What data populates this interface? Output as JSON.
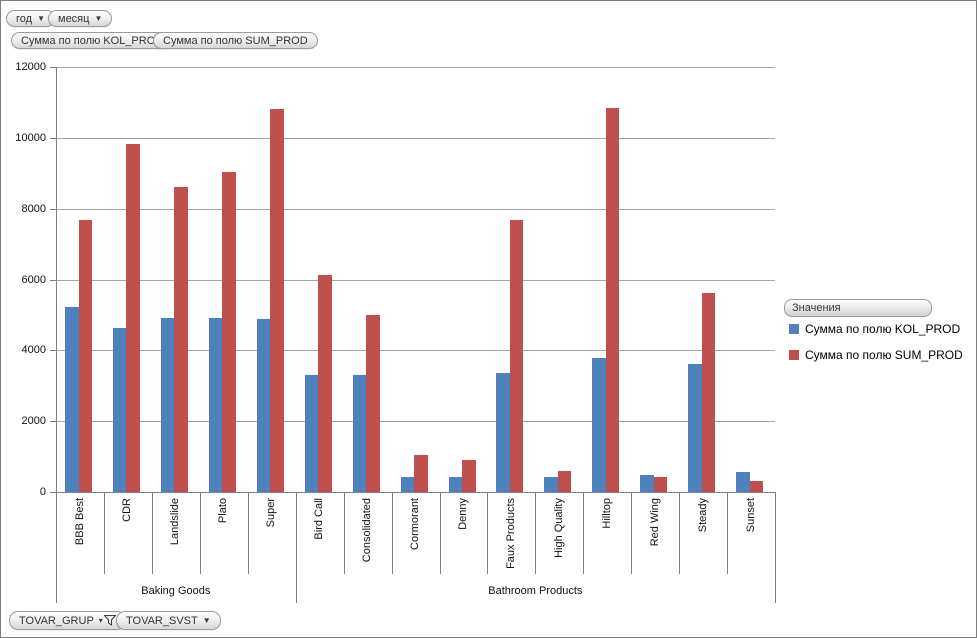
{
  "filters": {
    "top": [
      {
        "label": "год"
      },
      {
        "label": "месяц"
      }
    ],
    "bottom": [
      {
        "label": "TOVAR_GRUP",
        "icon": "filter-funnel"
      },
      {
        "label": "TOVAR_SVST",
        "icon": "dropdown"
      }
    ]
  },
  "field_buttons": [
    {
      "label": "Сумма по полю KOL_PROD"
    },
    {
      "label": "Сумма по полю SUM_PROD"
    }
  ],
  "legend": {
    "header": "Значения",
    "items": [
      {
        "label": "Сумма по полю KOL_PROD",
        "color": "#4F81BD"
      },
      {
        "label": "Сумма по полю SUM_PROD",
        "color": "#C0504D"
      }
    ]
  },
  "chart_data": {
    "type": "bar",
    "title": "",
    "categories": [
      "BBB Best",
      "CDR",
      "Landslide",
      "Plato",
      "Super",
      "Bird Call",
      "Consolidated",
      "Cormorant",
      "Denny",
      "Faux Products",
      "High Quality",
      "Hilltop",
      "Red Wing",
      "Steady",
      "Sunset"
    ],
    "groups": [
      {
        "label": "Baking Goods",
        "from": 0,
        "to": 5
      },
      {
        "label": "Bathroom Products",
        "from": 5,
        "to": 15
      }
    ],
    "series": [
      {
        "name": "Сумма по полю KOL_PROD",
        "color": "#4F81BD",
        "values": [
          5230,
          4620,
          4920,
          4920,
          4890,
          3310,
          3310,
          430,
          430,
          3360,
          430,
          3790,
          490,
          3620,
          560
        ]
      },
      {
        "name": "Сумма по полю SUM_PROD",
        "color": "#C0504D",
        "values": [
          7670,
          9830,
          8610,
          9030,
          10820,
          6130,
          5000,
          1040,
          910,
          7670,
          600,
          10850,
          420,
          5630,
          300
        ]
      }
    ],
    "ylim": [
      0,
      12000
    ],
    "ytick_step": 2000,
    "grid": true,
    "legend_position": "right"
  },
  "colors": {
    "gridline": "#a6a6a6",
    "axis": "#808080"
  }
}
